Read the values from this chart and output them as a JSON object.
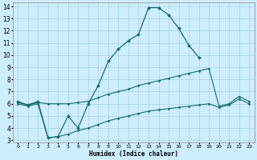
{
  "xlabel": "Humidex (Indice chaleur)",
  "background_color": "#cceeff",
  "line_color": "#1a6b6b",
  "xlim": [
    -0.5,
    23.5
  ],
  "ylim": [
    2.8,
    14.3
  ],
  "xticks": [
    0,
    1,
    2,
    3,
    4,
    5,
    6,
    7,
    8,
    9,
    10,
    11,
    12,
    13,
    14,
    15,
    16,
    17,
    18,
    19,
    20,
    21,
    22,
    23
  ],
  "yticks": [
    3,
    4,
    5,
    6,
    7,
    8,
    9,
    10,
    11,
    12,
    13,
    14
  ],
  "lines": [
    {
      "x": [
        0,
        1,
        2,
        3,
        4,
        5,
        6,
        7,
        8,
        9,
        10,
        11,
        12,
        13,
        14,
        15,
        16,
        17,
        18
      ],
      "y": [
        6.2,
        5.9,
        6.2,
        3.2,
        3.3,
        5.0,
        4.0,
        6.0,
        7.5,
        9.5,
        10.5,
        11.2,
        11.7,
        13.9,
        13.9,
        13.3,
        12.2,
        10.8,
        9.8
      ],
      "marker": "D",
      "markersize": 2.0,
      "linewidth": 0.9
    },
    {
      "x": [
        0,
        1,
        2,
        3,
        4,
        5,
        6,
        7,
        8,
        9,
        10,
        11,
        12,
        13,
        14,
        15,
        16,
        17,
        18,
        19,
        20,
        21,
        22,
        23
      ],
      "y": [
        6.1,
        5.9,
        6.1,
        6.0,
        6.0,
        6.0,
        6.1,
        6.2,
        6.5,
        6.8,
        7.0,
        7.2,
        7.5,
        7.7,
        7.9,
        8.1,
        8.3,
        8.5,
        8.7,
        8.9,
        5.8,
        6.0,
        6.6,
        6.2
      ],
      "marker": "D",
      "markersize": 1.5,
      "linewidth": 0.8
    },
    {
      "x": [
        0,
        1,
        2,
        3,
        4,
        5,
        6,
        7,
        8,
        9,
        10,
        11,
        12,
        13,
        14,
        15,
        16,
        17,
        18,
        19,
        20,
        21,
        22,
        23
      ],
      "y": [
        6.0,
        5.8,
        6.0,
        3.2,
        3.3,
        3.5,
        3.8,
        4.0,
        4.3,
        4.6,
        4.8,
        5.0,
        5.2,
        5.4,
        5.5,
        5.6,
        5.7,
        5.8,
        5.9,
        6.0,
        5.7,
        5.9,
        6.4,
        6.0
      ],
      "marker": "D",
      "markersize": 1.5,
      "linewidth": 0.8
    }
  ]
}
